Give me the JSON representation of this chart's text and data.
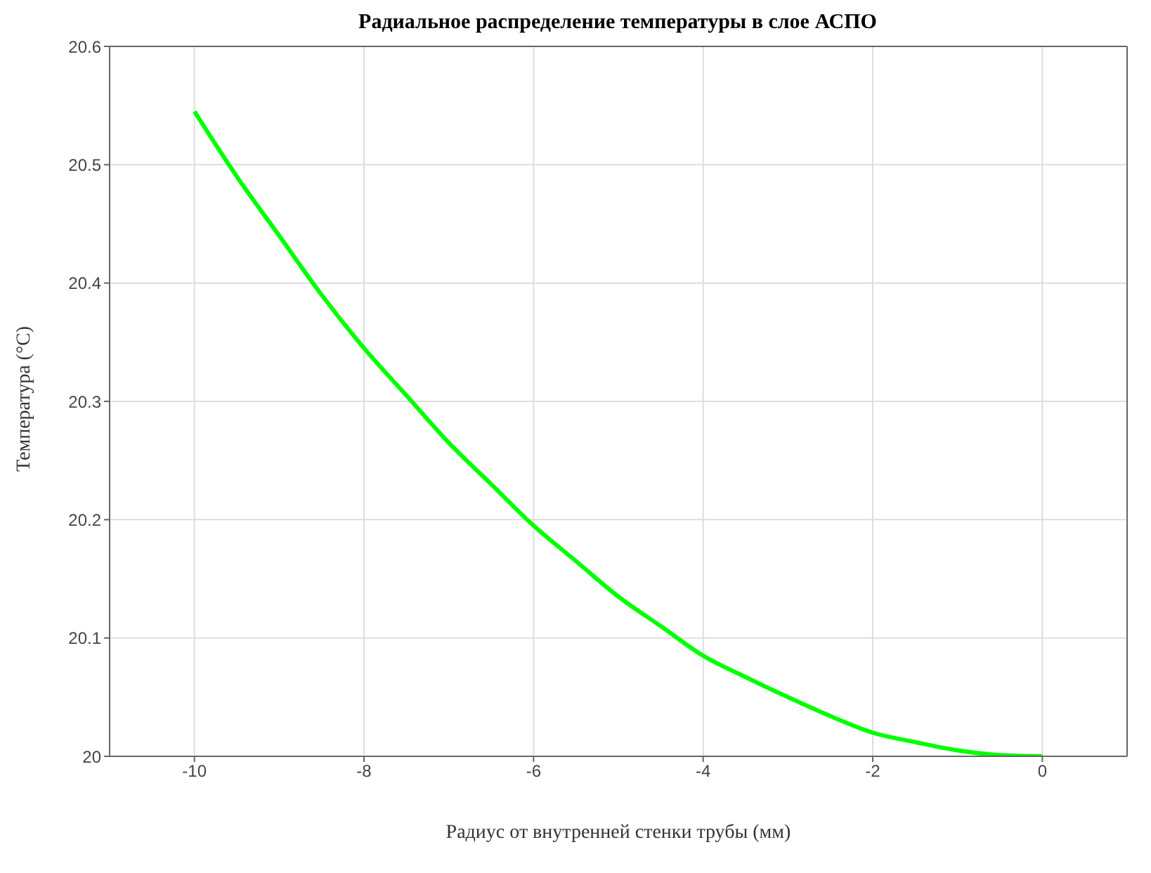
{
  "chart_data": {
    "type": "line",
    "title": "Радиальное распределение температуры в слое АСПО",
    "xlabel": "Радиус от внутренней стенки трубы (мм)",
    "ylabel": "Температура (°C)",
    "x": [
      -10,
      -9.5,
      -9,
      -8.5,
      -8,
      -7.5,
      -7,
      -6.5,
      -6,
      -5.5,
      -5,
      -4.5,
      -4,
      -3.5,
      -3,
      -2.5,
      -2,
      -1.5,
      -1,
      -0.5,
      0
    ],
    "series": [
      {
        "color": "#00ff00",
        "values": [
          20.545,
          20.49,
          20.44,
          20.39,
          20.345,
          20.305,
          20.265,
          20.23,
          20.195,
          20.165,
          20.135,
          20.11,
          20.085,
          20.067,
          20.05,
          20.034,
          20.02,
          20.012,
          20.005,
          20.001,
          20.0
        ]
      }
    ],
    "xlim": [
      -11,
      1
    ],
    "xticks": [
      -10,
      -8,
      -6,
      -4,
      -2,
      0
    ],
    "ylim": [
      20,
      20.6
    ],
    "yticks": [
      20,
      20.1,
      20.2,
      20.3,
      20.4,
      20.5,
      20.6
    ],
    "grid": true,
    "marker": "none",
    "line_style": "solid"
  }
}
